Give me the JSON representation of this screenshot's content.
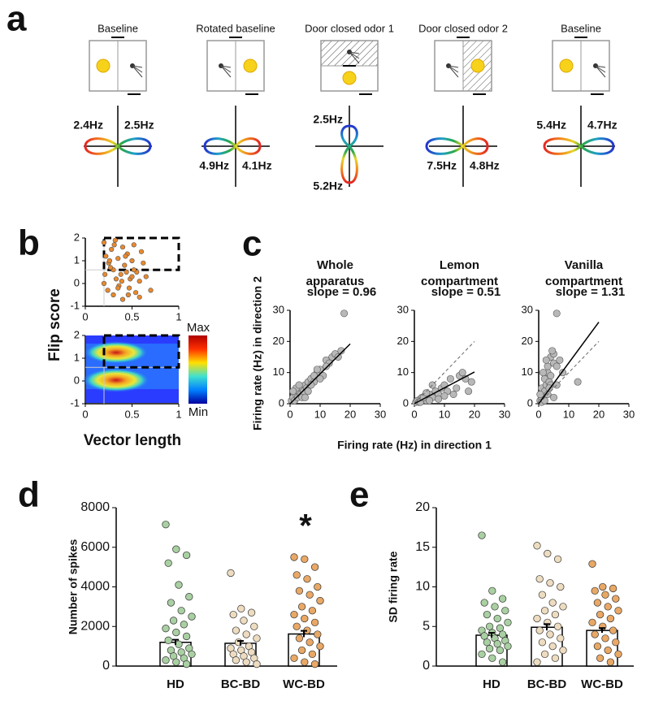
{
  "panel_labels": [
    "a",
    "b",
    "c",
    "d",
    "e"
  ],
  "conditions": [
    {
      "title": "Baseline",
      "labels": [
        "2.4Hz",
        "2.5Hz"
      ]
    },
    {
      "title": "Rotated baseline",
      "labels": [
        "4.9Hz",
        "4.1Hz"
      ]
    },
    {
      "title": "Door closed odor 1",
      "labels": [
        "2.5Hz",
        "5.2Hz"
      ]
    },
    {
      "title": "Door closed odor 2",
      "labels": [
        "7.5Hz",
        "4.8Hz"
      ]
    },
    {
      "title": "Baseline",
      "labels": [
        "5.4Hz",
        "4.7Hz"
      ]
    }
  ],
  "chart_data": [
    {
      "type": "scatter",
      "ylabel": "Flip score",
      "color": "#e8892e",
      "xlim": [
        0,
        1
      ],
      "ylim": [
        -1,
        2
      ],
      "xticks": [
        0,
        0.5,
        1
      ],
      "yticks": [
        -1,
        0,
        1,
        2
      ],
      "selection": {
        "x": [
          0.2,
          1
        ],
        "y": [
          0.6,
          2
        ]
      },
      "x": [
        0.2,
        0.22,
        0.25,
        0.28,
        0.3,
        0.32,
        0.35,
        0.38,
        0.4,
        0.42,
        0.45,
        0.48,
        0.5,
        0.52,
        0.55,
        0.58,
        0.6,
        0.65,
        0.2,
        0.24,
        0.27,
        0.3,
        0.33,
        0.36,
        0.4,
        0.44,
        0.47,
        0.5,
        0.54,
        0.58,
        0.62,
        0.7,
        0.21,
        0.26,
        0.31,
        0.35,
        0.39,
        0.43,
        0.46,
        0.52
      ],
      "y": [
        1.8,
        1.2,
        0.9,
        1.5,
        0.6,
        1.9,
        1.1,
        0.4,
        1.6,
        0.8,
        1.3,
        0.2,
        1.0,
        1.7,
        0.5,
        0.1,
        1.4,
        0.3,
        0.0,
        -0.3,
        0.7,
        -0.5,
        0.2,
        -0.1,
        -0.7,
        0.5,
        -0.2,
        0.3,
        -0.4,
        -0.6,
        0.9,
        -0.3,
        0.4,
        1.0,
        1.7,
        -0.2,
        0.1,
        1.2,
        -0.5,
        0.6
      ]
    },
    {
      "type": "heatmap",
      "xlabel": "Vector length",
      "colorbar_labels": [
        "Max",
        "Min"
      ],
      "xlim": [
        0,
        1
      ],
      "ylim": [
        -1,
        2
      ],
      "xticks": [
        0,
        0.5,
        1
      ],
      "yticks": [
        -1,
        0,
        1,
        2
      ],
      "selection": {
        "x": [
          0.2,
          1
        ],
        "y": [
          0.6,
          2
        ]
      }
    },
    {
      "type": "scatter",
      "title": [
        "Whole",
        "apparatus"
      ],
      "annotation": "slope = 0.96",
      "ylabel": "Firing rate (Hz) in direction 2",
      "xlabel": "Firing rate (Hz) in direction 1",
      "color": "#b8b8b8",
      "identity_line": false,
      "fit": {
        "slope": 0.96,
        "intercept": 0,
        "x": [
          0,
          20
        ]
      },
      "xlim": [
        0,
        30
      ],
      "ylim": [
        0,
        30
      ],
      "xticks": [
        0,
        10,
        20,
        30
      ],
      "yticks": [
        0,
        10,
        20,
        30
      ],
      "x": [
        0.5,
        1,
        1.5,
        2,
        2.5,
        3,
        3.5,
        4,
        4.5,
        5,
        5.5,
        6,
        7,
        8,
        9,
        10,
        11,
        12,
        13,
        14,
        15,
        16,
        17,
        18,
        2,
        3,
        4,
        6,
        8,
        10,
        12,
        1,
        5,
        7,
        9
      ],
      "y": [
        1,
        2,
        1,
        3,
        2,
        4,
        3,
        5,
        4,
        6,
        5,
        7,
        8,
        7,
        10,
        11,
        9,
        14,
        13,
        15,
        16,
        15,
        17,
        29,
        5,
        6,
        2,
        4,
        9,
        8,
        12,
        4,
        2,
        6,
        11
      ]
    },
    {
      "type": "scatter",
      "title": [
        "Lemon",
        "compartment"
      ],
      "annotation": "slope = 0.51",
      "color": "#b8b8b8",
      "identity_line": true,
      "fit": {
        "slope": 0.51,
        "intercept": 0,
        "x": [
          0,
          20
        ]
      },
      "xlim": [
        0,
        30
      ],
      "ylim": [
        0,
        30
      ],
      "xticks": [
        0,
        10,
        20,
        30
      ],
      "yticks": [
        0,
        10,
        20,
        30
      ],
      "x": [
        0.5,
        1,
        1.5,
        2,
        2.5,
        3,
        3.5,
        4,
        5,
        6,
        7,
        8,
        9,
        10,
        11,
        12,
        14,
        15,
        16,
        18,
        19,
        2,
        3,
        4,
        5,
        6,
        8,
        10,
        13,
        17
      ],
      "y": [
        0.5,
        1,
        0.5,
        1.5,
        2,
        1,
        2.5,
        1,
        3,
        2,
        4,
        3,
        5,
        6,
        4,
        8,
        5,
        9,
        10,
        4,
        7,
        0.5,
        2,
        3.5,
        1,
        6,
        1.5,
        2.5,
        3,
        8
      ]
    },
    {
      "type": "scatter",
      "title": [
        "Vanilla",
        "compartment"
      ],
      "annotation": "slope = 1.31",
      "color": "#b8b8b8",
      "identity_line": true,
      "fit": {
        "slope": 1.31,
        "intercept": 0,
        "x": [
          0,
          20
        ]
      },
      "xlim": [
        0,
        30
      ],
      "ylim": [
        0,
        30
      ],
      "xticks": [
        0,
        10,
        20,
        30
      ],
      "yticks": [
        0,
        10,
        20,
        30
      ],
      "x": [
        0.5,
        1,
        1,
        1.5,
        2,
        2,
        2.5,
        3,
        3,
        3.5,
        4,
        4,
        5,
        5,
        6,
        6,
        7,
        8,
        1,
        2,
        3,
        4,
        5,
        0.5,
        1.5,
        2.5,
        3.5,
        13,
        6,
        4.5
      ],
      "y": [
        1,
        2,
        5,
        3,
        4,
        8,
        6,
        10,
        12,
        7,
        15,
        9,
        13,
        16,
        12,
        29,
        14,
        10,
        0.5,
        1,
        3,
        6,
        2,
        3,
        10,
        14,
        5,
        7,
        6,
        17
      ]
    },
    {
      "type": "bar",
      "ylabel": "Number of spikes",
      "annotation": "*",
      "categories": [
        "HD",
        "BC-BD",
        "WC-BD"
      ],
      "values": [
        1200,
        1150,
        1620
      ],
      "errors": [
        130,
        120,
        160
      ],
      "point_colors": [
        "#a9d0a2",
        "#eedcc0",
        "#e9a866"
      ],
      "ylim": [
        0,
        8000
      ],
      "yticks": [
        0,
        2000,
        4000,
        6000,
        8000
      ],
      "points": [
        [
          7150,
          5900,
          5600,
          5200,
          4100,
          3500,
          3200,
          2800,
          2500,
          2300,
          2100,
          1900,
          1700,
          1500,
          1300,
          1100,
          900,
          800,
          700,
          600,
          500,
          400,
          300,
          200,
          100
        ],
        [
          4700,
          2900,
          2700,
          2600,
          2300,
          2000,
          1800,
          1600,
          1400,
          1200,
          1000,
          900,
          800,
          700,
          600,
          500,
          400,
          300,
          200,
          100
        ],
        [
          5500,
          5400,
          5000,
          4600,
          4400,
          4000,
          3800,
          3600,
          3300,
          3000,
          2800,
          2600,
          2400,
          2200,
          2000,
          1800,
          1600,
          1400,
          1200,
          1000,
          800,
          600,
          400,
          200,
          100
        ]
      ]
    },
    {
      "type": "bar",
      "ylabel": "SD firing rate",
      "categories": [
        "HD",
        "BC-BD",
        "WC-BD"
      ],
      "values": [
        3.9,
        4.9,
        4.5
      ],
      "errors": [
        0.3,
        0.4,
        0.3
      ],
      "point_colors": [
        "#a9d0a2",
        "#eedcc0",
        "#e9a866"
      ],
      "ylim": [
        0,
        20
      ],
      "yticks": [
        0,
        5,
        10,
        15,
        20
      ],
      "points": [
        [
          16.5,
          9.5,
          8.5,
          8,
          7.5,
          7,
          6.5,
          6,
          5.5,
          5,
          4.8,
          4.5,
          4.2,
          4,
          3.8,
          3.5,
          3.2,
          3,
          2.8,
          2.5,
          2.2,
          2,
          1.5,
          1,
          0.5
        ],
        [
          15.2,
          14.2,
          13.5,
          11,
          10.5,
          10,
          9,
          8,
          7.5,
          7,
          6.5,
          6,
          5.5,
          5,
          4.5,
          4,
          3.5,
          3,
          2.5,
          2,
          1.5,
          1,
          0.5
        ],
        [
          12.9,
          10,
          9.8,
          9.5,
          9,
          8.5,
          8,
          7.5,
          7,
          6.5,
          6,
          5.5,
          5,
          4.5,
          4,
          3.5,
          3,
          2.5,
          2,
          1.5,
          1,
          0.5
        ]
      ]
    }
  ]
}
